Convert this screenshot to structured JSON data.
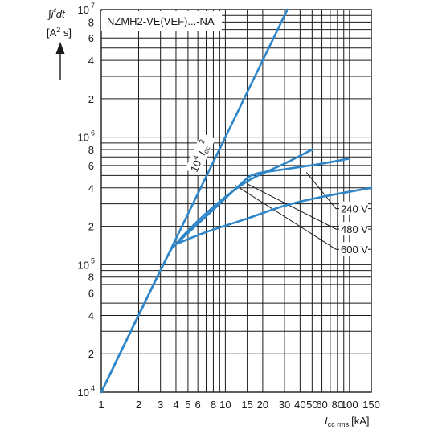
{
  "chart_data": {
    "type": "line",
    "title": "NZMH2-VE(VEF)...-NA",
    "ylabel": {
      "line1_parts": [
        "∫",
        "i",
        "²",
        "dt"
      ],
      "line2_parts": [
        "[A",
        "2",
        " s]"
      ]
    },
    "xlabel": {
      "symbol": "I",
      "sub": "cc rms",
      "unit": "[kA]"
    },
    "x_scale": "log",
    "y_scale": "log",
    "xlim": [
      1,
      150
    ],
    "ylim": [
      10000,
      10000000
    ],
    "x_ticks": [
      {
        "value": 1,
        "label": "1"
      },
      {
        "value": 2,
        "label": "2"
      },
      {
        "value": 3,
        "label": "3"
      },
      {
        "value": 4,
        "label": "4"
      },
      {
        "value": 5,
        "label": "5"
      },
      {
        "value": 6,
        "label": "6"
      },
      {
        "value": 8,
        "label": "8"
      },
      {
        "value": 10,
        "label": "10"
      },
      {
        "value": 15,
        "label": "15"
      },
      {
        "value": 20,
        "label": "20"
      },
      {
        "value": 30,
        "label": "30"
      },
      {
        "value": 40,
        "label": "40"
      },
      {
        "value": 50,
        "label": "50"
      },
      {
        "value": 60,
        "label": "60"
      },
      {
        "value": 80,
        "label": "80"
      },
      {
        "value": 100,
        "label": "100"
      },
      {
        "value": 150,
        "label": "150"
      }
    ],
    "y_ticks": [
      {
        "value": 10000,
        "base": "10",
        "exp": "4"
      },
      {
        "value": 20000,
        "base": "2",
        "exp": ""
      },
      {
        "value": 40000,
        "base": "4",
        "exp": ""
      },
      {
        "value": 60000,
        "base": "6",
        "exp": ""
      },
      {
        "value": 80000,
        "base": "8",
        "exp": ""
      },
      {
        "value": 100000,
        "base": "10",
        "exp": "5"
      },
      {
        "value": 200000,
        "base": "2",
        "exp": ""
      },
      {
        "value": 400000,
        "base": "4",
        "exp": ""
      },
      {
        "value": 600000,
        "base": "6",
        "exp": ""
      },
      {
        "value": 800000,
        "base": "8",
        "exp": ""
      },
      {
        "value": 1000000,
        "base": "10",
        "exp": "6"
      },
      {
        "value": 2000000,
        "base": "2",
        "exp": ""
      },
      {
        "value": 4000000,
        "base": "4",
        "exp": ""
      },
      {
        "value": 6000000,
        "base": "6",
        "exp": ""
      },
      {
        "value": 8000000,
        "base": "8",
        "exp": ""
      },
      {
        "value": 10000000,
        "base": "10",
        "exp": "7"
      }
    ],
    "grid_x": [
      1,
      2,
      3,
      4,
      5,
      6,
      7,
      8,
      9,
      10,
      15,
      20,
      30,
      40,
      50,
      60,
      70,
      80,
      90,
      100,
      150
    ],
    "grid_y": [
      10000,
      20000,
      30000,
      40000,
      50000,
      60000,
      70000,
      80000,
      90000,
      100000,
      200000,
      300000,
      400000,
      500000,
      600000,
      700000,
      800000,
      900000,
      1000000,
      2000000,
      3000000,
      4000000,
      5000000,
      6000000,
      7000000,
      8000000,
      9000000,
      10000000
    ],
    "line_color": "#2e86c8",
    "series": [
      {
        "label_parts": [
          "10",
          "4",
          " I",
          "cc",
          "2"
        ],
        "points": [
          [
            1,
            10000
          ],
          [
            3.16,
            100000
          ],
          [
            10,
            1000000
          ],
          [
            31.6,
            10000000
          ]
        ]
      },
      {
        "points": [
          [
            1,
            10000
          ],
          [
            3.16,
            100000
          ],
          [
            4,
            145000
          ],
          [
            6,
            220000
          ],
          [
            10,
            340000
          ],
          [
            15,
            450000
          ],
          [
            20,
            520000
          ],
          [
            30,
            620000
          ],
          [
            50,
            800000
          ]
        ]
      },
      {
        "points": [
          [
            4,
            145000
          ],
          [
            8,
            270000
          ],
          [
            13,
            420000
          ],
          [
            17,
            510000
          ],
          [
            30,
            560000
          ],
          [
            60,
            620000
          ],
          [
            100,
            680000
          ]
        ]
      },
      {
        "points": [
          [
            4,
            145000
          ],
          [
            7,
            180000
          ],
          [
            15,
            230000
          ],
          [
            30,
            290000
          ],
          [
            60,
            340000
          ],
          [
            150,
            400000
          ]
        ]
      }
    ],
    "annotations": [
      {
        "label": "240 V",
        "from": [
          45,
          530000
        ],
        "to": [
          100,
          275000
        ]
      },
      {
        "label": "480 V",
        "from": [
          15,
          430000
        ],
        "to": [
          100,
          190000
        ]
      },
      {
        "label": "600 V",
        "from": [
          12,
          420000
        ],
        "to": [
          100,
          132000
        ]
      }
    ]
  }
}
